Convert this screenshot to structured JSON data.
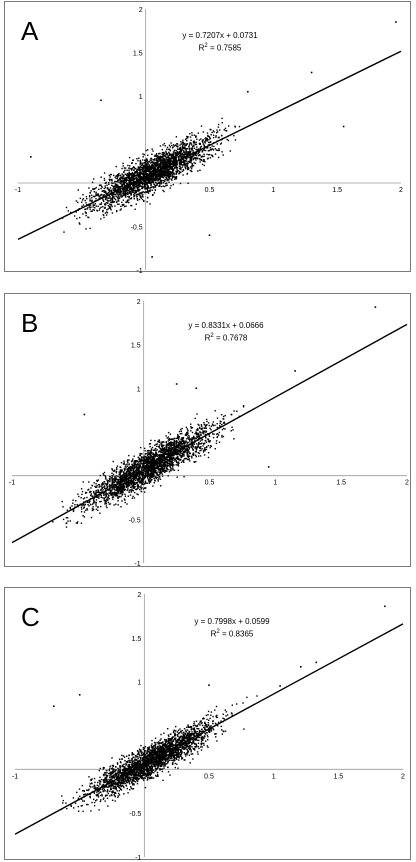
{
  "chart_data": [
    {
      "type": "scatter",
      "panel_label": "A",
      "equation": "y = 0.7207x + 0.0731",
      "r_squared_label": "R",
      "r_squared_sup": "2",
      "r_squared_value": " = 0.7585",
      "slope": 0.7207,
      "intercept": 0.0731,
      "xlim": [
        -1,
        2
      ],
      "ylim": [
        -1,
        2
      ],
      "x_ticks": [
        "-1",
        "0.5",
        "1",
        "1.5",
        "2"
      ],
      "y_ticks": [
        "2",
        "1.5",
        "1",
        "-0.5",
        "-1"
      ],
      "cloud": {
        "x_center": 0.05,
        "x_spread": 0.42,
        "y_noise": 0.17,
        "n": 2600
      },
      "outliers": [
        [
          1.96,
          1.85
        ],
        [
          1.3,
          1.27
        ],
        [
          -0.35,
          0.95
        ],
        [
          0.05,
          -0.85
        ],
        [
          0.5,
          -0.6
        ],
        [
          1.55,
          0.65
        ],
        [
          -0.9,
          0.3
        ],
        [
          0.8,
          1.05
        ]
      ]
    },
    {
      "type": "scatter",
      "panel_label": "B",
      "equation": "y = 0.8331x + 0.0666",
      "r_squared_label": "R",
      "r_squared_sup": "2",
      "r_squared_value": " = 0.7678",
      "slope": 0.8331,
      "intercept": 0.0666,
      "xlim": [
        -1,
        2
      ],
      "ylim": [
        -1,
        2
      ],
      "x_ticks": [
        "-1",
        "0.5",
        "1",
        "1.5",
        "2"
      ],
      "y_ticks": [
        "2",
        "1.5",
        "1",
        "-0.5",
        "-1"
      ],
      "cloud": {
        "x_center": 0.05,
        "x_spread": 0.42,
        "y_noise": 0.16,
        "n": 2600
      },
      "outliers": [
        [
          1.76,
          1.93
        ],
        [
          1.15,
          1.2
        ],
        [
          -0.45,
          0.7
        ],
        [
          0.25,
          1.05
        ],
        [
          0.4,
          1.0
        ],
        [
          0.95,
          0.1
        ]
      ]
    },
    {
      "type": "scatter",
      "panel_label": "C",
      "equation": "y = 0.7998x + 0.0599",
      "r_squared_label": "R",
      "r_squared_sup": "2",
      "r_squared_value": " = 0.8365",
      "slope": 0.7998,
      "intercept": 0.0599,
      "xlim": [
        -1,
        2
      ],
      "ylim": [
        -1,
        2
      ],
      "x_ticks": [
        "-1",
        "0.5",
        "1",
        "1.5",
        "2"
      ],
      "y_ticks": [
        "2",
        "1.5",
        "1",
        "-0.5",
        "-1"
      ],
      "cloud": {
        "x_center": 0.05,
        "x_spread": 0.42,
        "y_noise": 0.15,
        "n": 2600
      },
      "outliers": [
        [
          1.86,
          1.86
        ],
        [
          1.33,
          1.22
        ],
        [
          1.21,
          1.17
        ],
        [
          -0.7,
          0.72
        ],
        [
          -0.5,
          0.85
        ],
        [
          0.5,
          0.96
        ],
        [
          1.05,
          0.95
        ]
      ]
    }
  ]
}
